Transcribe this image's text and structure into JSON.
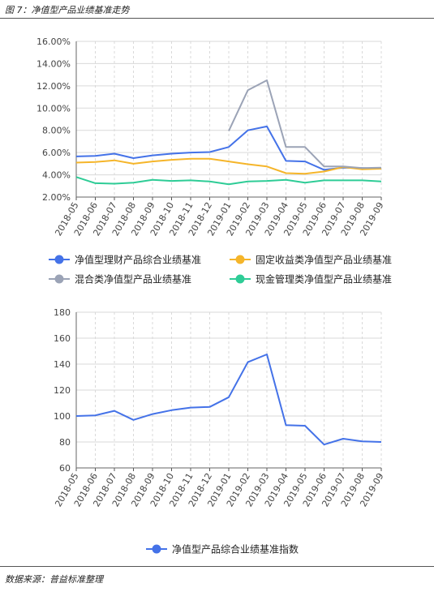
{
  "figure_title": "图 7：净值型产品业绩基准走势",
  "source_text": "数据来源：普益标准整理",
  "chart_data": [
    {
      "type": "line",
      "categories": [
        "2018-05",
        "2018-06",
        "2018-07",
        "2018-08",
        "2018-09",
        "2018-10",
        "2018-11",
        "2018-12",
        "2019-01",
        "2019-02",
        "2019-03",
        "2019-04",
        "2019-05",
        "2019-06",
        "2019-07",
        "2019-08",
        "2019-09"
      ],
      "ylim": [
        2,
        16
      ],
      "yticks": [
        "2.00%",
        "4.00%",
        "6.00%",
        "8.00%",
        "10.00%",
        "12.00%",
        "14.00%",
        "16.00%"
      ],
      "grid": true,
      "legend_position": "bottom",
      "series": [
        {
          "name": "净值型理财产品综合业绩基准",
          "color": "#4472e8",
          "values": [
            5.65,
            5.7,
            5.9,
            5.5,
            5.75,
            5.9,
            6.0,
            6.05,
            6.5,
            8.0,
            8.35,
            5.25,
            5.2,
            4.45,
            4.65,
            4.6,
            4.55
          ]
        },
        {
          "name": "固定收益类净值型产品业绩基准",
          "color": "#f5b52a",
          "values": [
            5.1,
            5.15,
            5.3,
            5.0,
            5.2,
            5.35,
            5.45,
            5.45,
            5.2,
            4.95,
            4.75,
            4.15,
            4.1,
            4.3,
            4.7,
            4.5,
            4.55
          ]
        },
        {
          "name": "混合类净值型产品业绩基准",
          "color": "#9ba3b6",
          "values": [
            null,
            null,
            null,
            null,
            null,
            null,
            null,
            null,
            7.95,
            11.6,
            12.5,
            6.5,
            6.5,
            4.75,
            4.75,
            4.6,
            4.65
          ]
        },
        {
          "name": "现金管理类净值型产品业绩基准",
          "color": "#2ecc96",
          "values": [
            3.8,
            3.25,
            3.2,
            3.3,
            3.55,
            3.45,
            3.5,
            3.4,
            3.15,
            3.4,
            3.45,
            3.55,
            3.3,
            3.5,
            3.5,
            3.5,
            3.4
          ]
        }
      ]
    },
    {
      "type": "line",
      "categories": [
        "2018-05",
        "2018-06",
        "2018-07",
        "2018-08",
        "2018-09",
        "2018-10",
        "2018-11",
        "2018-12",
        "2019-01",
        "2019-02",
        "2019-03",
        "2019-04",
        "2019-05",
        "2019-06",
        "2019-07",
        "2019-08",
        "2019-09"
      ],
      "ylim": [
        60,
        180
      ],
      "yticks": [
        "60",
        "80",
        "100",
        "120",
        "140",
        "160",
        "180"
      ],
      "grid": true,
      "legend_position": "bottom",
      "series": [
        {
          "name": "净值型产品综合业绩基准指数",
          "color": "#4472e8",
          "values": [
            100,
            100.5,
            104,
            97,
            101.5,
            104.5,
            106.5,
            107,
            114.5,
            141.5,
            147.5,
            93,
            92.5,
            78,
            82.5,
            80.5,
            80
          ]
        }
      ]
    }
  ]
}
